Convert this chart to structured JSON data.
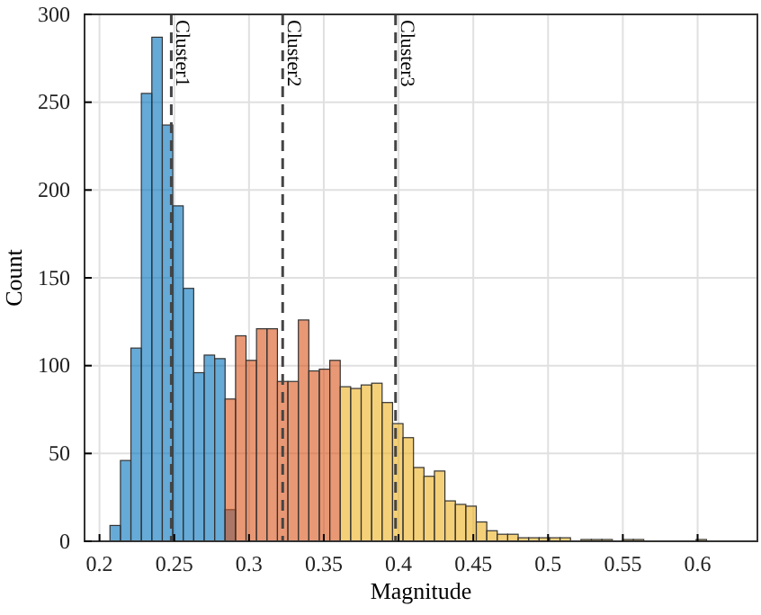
{
  "chart_data": {
    "type": "histogram",
    "xlabel": "Magnitude",
    "ylabel": "Count",
    "bins": [
      0.207,
      0.214,
      0.221,
      0.228,
      0.235,
      0.242,
      0.249,
      0.256,
      0.263,
      0.27,
      0.277,
      0.284,
      0.291,
      0.298,
      0.305,
      0.312,
      0.319,
      0.326,
      0.333,
      0.34,
      0.347,
      0.354,
      0.361,
      0.368,
      0.375,
      0.382,
      0.389,
      0.396,
      0.403,
      0.41,
      0.417,
      0.424,
      0.431,
      0.438,
      0.445,
      0.452,
      0.459,
      0.466,
      0.473,
      0.48,
      0.487,
      0.494,
      0.501,
      0.508,
      0.515,
      0.522,
      0.529,
      0.536,
      0.543,
      0.55,
      0.557,
      0.564,
      0.571,
      0.578,
      0.585,
      0.592,
      0.599,
      0.606,
      0.613
    ],
    "series": [
      {
        "color": "#0072bd",
        "values": [
          9,
          46,
          110,
          255,
          287,
          237,
          191,
          144,
          96,
          106,
          104,
          18,
          null,
          null,
          null,
          null,
          null,
          null,
          null,
          null,
          null,
          null,
          null,
          null,
          null,
          null,
          null,
          null,
          null,
          null,
          null,
          null,
          null,
          null,
          null,
          null,
          null,
          null,
          null,
          null,
          null,
          null,
          null,
          null,
          null,
          null,
          null,
          null,
          null,
          null,
          null,
          null,
          null,
          null,
          null,
          null,
          null,
          null
        ]
      },
      {
        "color": "#d95319",
        "values": [
          null,
          null,
          null,
          null,
          null,
          null,
          null,
          null,
          null,
          null,
          null,
          81,
          117,
          103,
          121,
          121,
          91,
          91,
          126,
          97,
          98,
          103,
          null,
          null,
          null,
          null,
          null,
          null,
          null,
          null,
          null,
          null,
          null,
          null,
          null,
          null,
          null,
          null,
          null,
          null,
          null,
          null,
          null,
          null,
          null,
          null,
          null,
          null,
          null,
          null,
          null,
          null,
          null,
          null,
          null,
          null,
          null,
          null
        ]
      },
      {
        "color": "#edb120",
        "values": [
          null,
          null,
          null,
          null,
          null,
          null,
          null,
          null,
          null,
          null,
          null,
          null,
          null,
          null,
          null,
          null,
          null,
          null,
          null,
          null,
          null,
          null,
          88,
          87,
          89,
          90,
          79,
          67,
          59,
          42,
          37,
          40,
          23,
          21,
          20,
          11,
          6,
          4,
          4,
          2,
          2,
          2,
          2,
          2,
          0,
          1,
          1,
          1,
          0,
          1,
          1,
          0,
          0,
          0,
          0,
          0,
          1,
          0
        ]
      }
    ],
    "xlim": [
      0.19,
      0.64
    ],
    "ylim": [
      0,
      300
    ],
    "xticks": [
      0.2,
      0.25,
      0.3,
      0.35,
      0.4,
      0.45,
      0.5,
      0.55,
      0.6
    ],
    "yticks": [
      0,
      50,
      100,
      150,
      200,
      250,
      300
    ],
    "grid": true,
    "ref_lines": [
      {
        "axis": "x",
        "value": 0.248,
        "label": "Cluster1",
        "line_style": "dashed"
      },
      {
        "axis": "x",
        "value": 0.3225,
        "label": "Cluster2",
        "line_style": "dashed"
      },
      {
        "axis": "x",
        "value": 0.398,
        "label": "Cluster3",
        "line_style": "dashed"
      }
    ]
  }
}
